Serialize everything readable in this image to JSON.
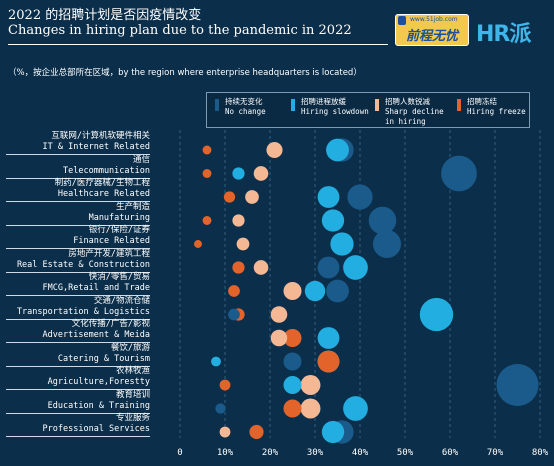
{
  "header": {
    "title_zh": "2022 的招聘计划是否因疫情改变",
    "title_en": "Changes in hiring plan  due to the pandemic in 2022",
    "subtitle": "（%，按企业总部所在区域，by the region where enterprise headquarters is located）"
  },
  "logos": {
    "logo1_url": "www.51job.com",
    "logo1_text": "前程无忧",
    "logo2_text": "HR派"
  },
  "colors": {
    "background": "#0b2e4a",
    "no_change": "#1a5b8c",
    "hiring_slowdown": "#22aee0",
    "sharp_decline": "#f5b895",
    "hiring_freeze": "#e3642a"
  },
  "chart_data": {
    "type": "scatter",
    "title": "2022 的招聘计划是否因疫情改变 Changes in hiring plan  due to the pandemic in 2022",
    "subtitle": "（%，按企业总部所在区域，by the region where enterprise headquarters is located）",
    "xlim": [
      0,
      80
    ],
    "x_ticks": [
      "0",
      "10%",
      "20%",
      "30%",
      "40%",
      "50%",
      "60%",
      "70%",
      "80%"
    ],
    "legend_position": "top-right",
    "categories": [
      {
        "zh": "互联网/计算机软硬件相关",
        "en": "IT & Internet Related"
      },
      {
        "zh": "通信",
        "en": "Telecommunication"
      },
      {
        "zh": "制药/医疗器械/生物工程",
        "en": "Healthcare Related"
      },
      {
        "zh": "生产制造",
        "en": "Manufaturing"
      },
      {
        "zh": "银行/保险/证券",
        "en": "Finance Related"
      },
      {
        "zh": "房地产开发/建筑工程",
        "en": "Real Estate & Construction"
      },
      {
        "zh": "快消/零售/贸易",
        "en": "FMCG,Retail and Trade"
      },
      {
        "zh": "交通/物流仓储",
        "en": "Transportation & Logistics"
      },
      {
        "zh": "文化传播/广告/影视",
        "en": "Advertisement & Meida"
      },
      {
        "zh": "餐饮/旅游",
        "en": "Catering & Tourism"
      },
      {
        "zh": "农林牧渔",
        "en": "Agriculture,Forestty"
      },
      {
        "zh": "教育培训",
        "en": "Education & Training"
      },
      {
        "zh": "专业服务",
        "en": "Professional Services"
      }
    ],
    "series": [
      {
        "key": "no_change",
        "name_zh": "持续无变化",
        "name_en": "No change",
        "color": "#1a5b8c",
        "values": [
          36,
          62,
          40,
          45,
          46,
          33,
          35,
          12,
          22,
          25,
          75,
          9,
          36
        ]
      },
      {
        "key": "hiring_slowdown",
        "name_zh": "招聘进程放缓",
        "name_en": "Hiring slowdown",
        "color": "#22aee0",
        "values": [
          35,
          13,
          33,
          34,
          36,
          39,
          30,
          57,
          33,
          8,
          25,
          39,
          34
        ]
      },
      {
        "key": "sharp_decline",
        "name_zh": "招聘人数锐减",
        "name_en": "Sharp decline in hiring",
        "color": "#f5b895",
        "values": [
          21,
          18,
          16,
          13,
          14,
          18,
          25,
          22,
          22,
          33,
          29,
          29,
          10
        ]
      },
      {
        "key": "hiring_freeze",
        "name_zh": "招聘冻结",
        "name_en": "Hiring freeze",
        "color": "#e3642a",
        "values": [
          6,
          6,
          11,
          6,
          4,
          13,
          12,
          13,
          25,
          33,
          10,
          25,
          17
        ]
      }
    ]
  }
}
